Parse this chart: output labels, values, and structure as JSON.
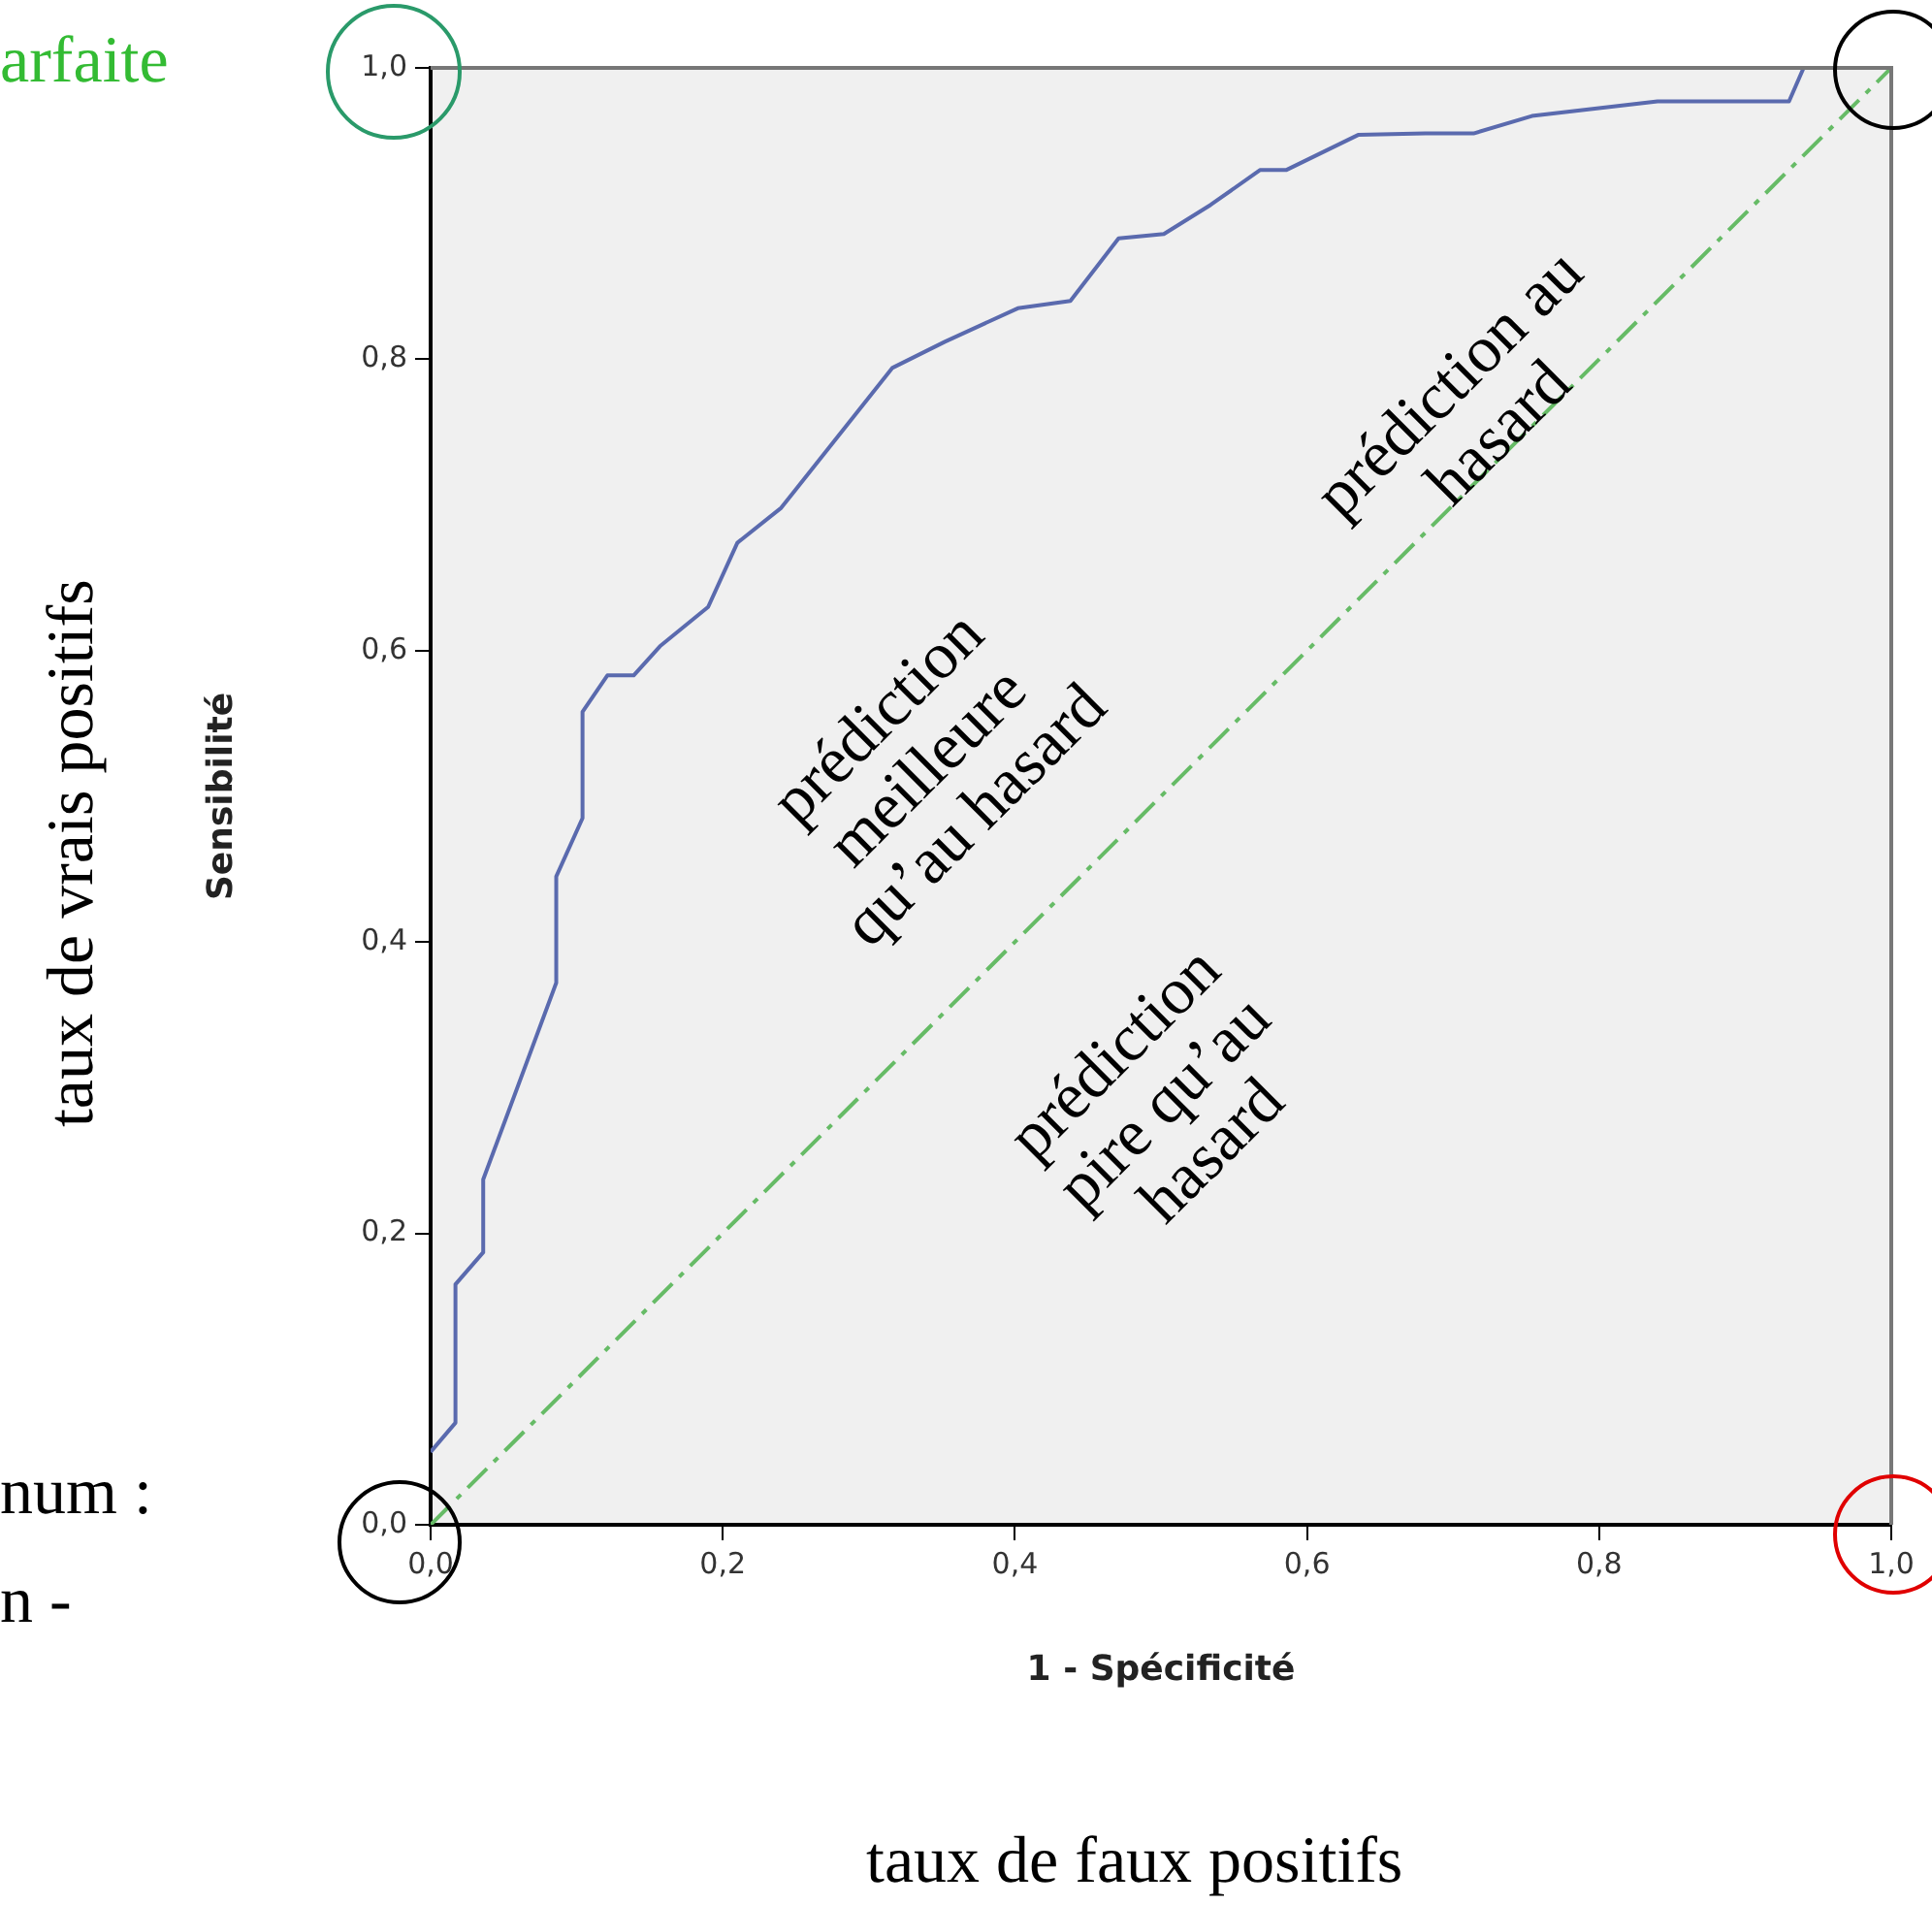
{
  "chart_data": {
    "type": "line",
    "xlabel": "1 - Spécificité",
    "ylabel": "Sensibilité",
    "xlim": [
      0,
      1
    ],
    "ylim": [
      0,
      1
    ],
    "xticks": [
      {
        "value": 0,
        "label": "0,0"
      },
      {
        "value": 0.2,
        "label": "0,2"
      },
      {
        "value": 0.4,
        "label": "0,4"
      },
      {
        "value": 0.6,
        "label": "0,6"
      },
      {
        "value": 0.8,
        "label": "0,8"
      },
      {
        "value": 1,
        "label": "1,0"
      }
    ],
    "yticks": [
      {
        "value": 0,
        "label": "0,0"
      },
      {
        "value": 0.2,
        "label": "0,2"
      },
      {
        "value": 0.4,
        "label": "0,4"
      },
      {
        "value": 0.6,
        "label": "0,6"
      },
      {
        "value": 0.8,
        "label": "0,8"
      },
      {
        "value": 1,
        "label": "1,0"
      }
    ],
    "grid": false,
    "legend": false,
    "marker": "none",
    "series": [
      {
        "color": "#5a6aae",
        "line_style": "solid",
        "x": [
          0,
          0.017,
          0.017,
          0.036,
          0.036,
          0.086,
          0.086,
          0.104,
          0.104,
          0.121,
          0.139,
          0.157,
          0.19,
          0.21,
          0.24,
          0.316,
          0.352,
          0.402,
          0.438,
          0.471,
          0.502,
          0.534,
          0.568,
          0.586,
          0.635,
          0.681,
          0.714,
          0.754,
          0.84,
          0.93,
          0.94,
          1
        ],
        "values": [
          0.05,
          0.07,
          0.165,
          0.187,
          0.237,
          0.372,
          0.445,
          0.485,
          0.558,
          0.583,
          0.583,
          0.603,
          0.63,
          0.674,
          0.698,
          0.794,
          0.812,
          0.835,
          0.84,
          0.883,
          0.886,
          0.906,
          0.93,
          0.93,
          0.954,
          0.955,
          0.955,
          0.967,
          0.977,
          0.977,
          1,
          1
        ]
      },
      {
        "color": "#66bb66",
        "line_style": "dashed",
        "x": [
          0,
          1
        ],
        "values": [
          0,
          1
        ]
      }
    ],
    "annotations": [
      "arfaite",
      "taux de vrais positifs",
      "num :",
      "n -",
      "taux de faux positifs",
      "prédiction meilleure qu’au hasard",
      "prédiction au hasard",
      "prédiction pire qu’au hasard"
    ]
  }
}
